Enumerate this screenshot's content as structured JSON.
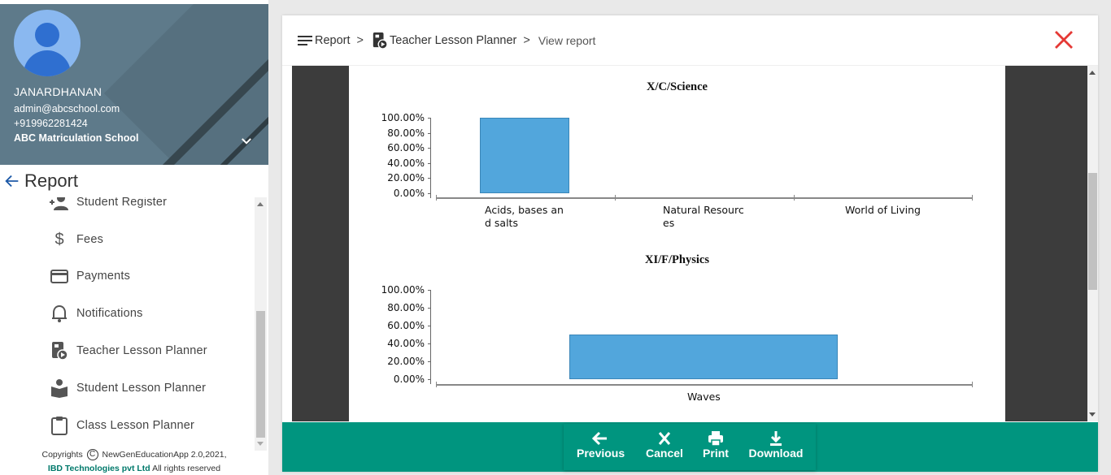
{
  "profile": {
    "name": "JANARDHANAN",
    "email": "admin@abcschool.com",
    "phone": "+919962281424",
    "school": "ABC Matriculation School"
  },
  "sidebar": {
    "title": "Report",
    "items": [
      {
        "label": "Student Register",
        "icon": "person-add-icon"
      },
      {
        "label": "Fees",
        "icon": "dollar-icon"
      },
      {
        "label": "Payments",
        "icon": "credit-card-icon"
      },
      {
        "label": "Notifications",
        "icon": "bell-icon"
      },
      {
        "label": "Teacher Lesson Planner",
        "icon": "teacher-planner-icon"
      },
      {
        "label": "Student Lesson Planner",
        "icon": "student-reading-icon"
      },
      {
        "label": "Class Lesson Planner",
        "icon": "clipboard-icon"
      }
    ],
    "copyright_prefix": "Copyrights",
    "copyright_symbol": "C",
    "copyright_app": "NewGenEducationApp 2.0,2021,",
    "company": "IBD Technologies pvt Ltd",
    "rights": "All rights reserved"
  },
  "breadcrumb": {
    "report": "Report",
    "sep1": ">",
    "planner": "Teacher Lesson Planner",
    "sep2": ">",
    "current": "View report"
  },
  "chart_data": [
    {
      "type": "bar",
      "title": "X/C/Science",
      "categories": [
        "Acids, bases and salts",
        "Natural Resources",
        "World of Living"
      ],
      "category_lines": [
        [
          "Acids, bases an",
          "d salts"
        ],
        [
          "Natural Resourc",
          "es"
        ],
        [
          "World of Living"
        ]
      ],
      "values": [
        100,
        0,
        0
      ],
      "ytick_labels": [
        "100.00%",
        "80.00%",
        "60.00%",
        "40.00%",
        "20.00%",
        "0.00%"
      ],
      "ylim": [
        0,
        100
      ],
      "xlabel": "",
      "ylabel": ""
    },
    {
      "type": "bar",
      "title": "XI/F/Physics",
      "categories": [
        "Waves"
      ],
      "category_lines": [
        [
          "Waves"
        ]
      ],
      "values": [
        50
      ],
      "ytick_labels": [
        "100.00%",
        "80.00%",
        "60.00%",
        "40.00%",
        "20.00%",
        "0.00%"
      ],
      "ylim": [
        0,
        100
      ],
      "xlabel": "",
      "ylabel": ""
    }
  ],
  "actions": {
    "previous": "Previous",
    "cancel": "Cancel",
    "print": "Print",
    "download": "Download"
  },
  "colors": {
    "accent": "#00957f",
    "bar": "#52a6dc",
    "close": "#e53935",
    "profile_bg": "#5e7a8a"
  }
}
